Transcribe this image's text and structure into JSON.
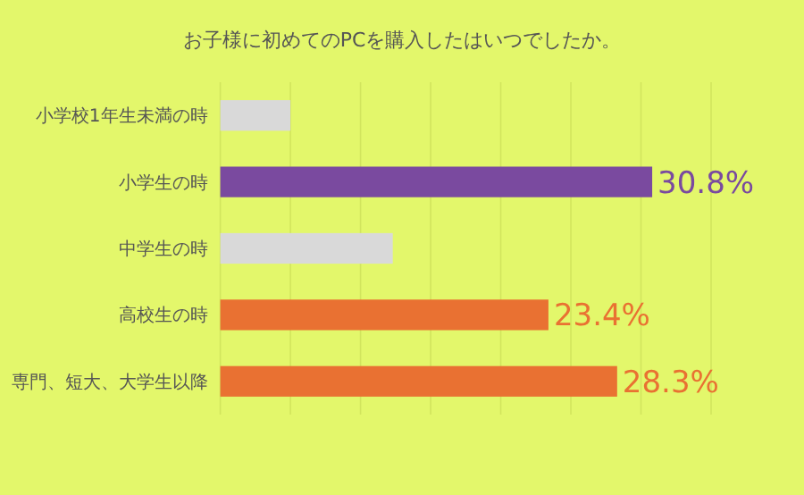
{
  "chart_data": {
    "type": "bar",
    "orientation": "horizontal",
    "title": "お子様に初めてのPCを購入したはいつでしたか。",
    "categories": [
      "小学校1年生未満の時",
      "小学生の時",
      "中学生の時",
      "高校生の時",
      "専門、短大、大学生以降"
    ],
    "values": [
      5.0,
      30.8,
      12.3,
      23.4,
      28.3
    ],
    "colors": [
      "#d9d9d9",
      "#7a4a9f",
      "#d9d9d9",
      "#e97132",
      "#e97132"
    ],
    "value_labels": [
      null,
      "30.8%",
      null,
      "23.4%",
      "28.3%"
    ],
    "xlim": [
      0,
      35
    ],
    "xticks": [
      {
        "value": 0,
        "label": null
      },
      {
        "value": 5,
        "label": null
      },
      {
        "value": 10,
        "label": null
      },
      {
        "value": 15,
        "label": null
      },
      {
        "value": 20,
        "label": null
      },
      {
        "value": 25,
        "label": null
      },
      {
        "value": 30,
        "label": null
      },
      {
        "value": 35,
        "label": null
      }
    ],
    "grid": "x"
  }
}
